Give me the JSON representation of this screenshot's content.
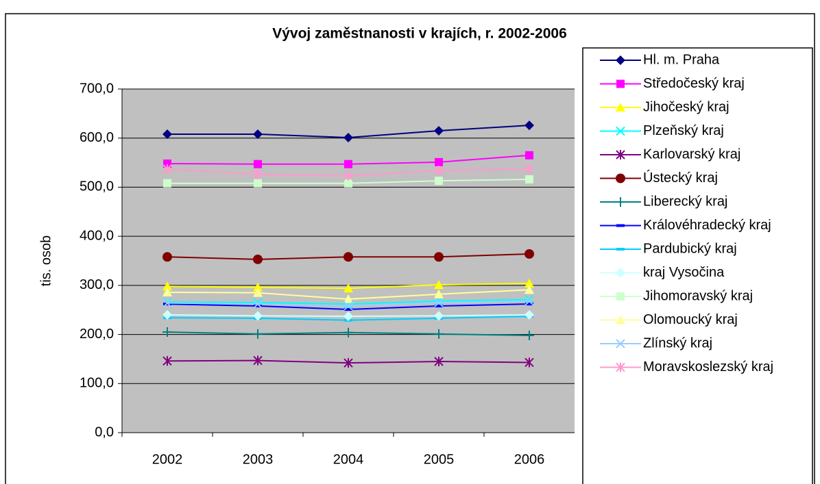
{
  "chart_data": {
    "type": "line",
    "title": "Vývoj zaměstnanosti v krajích, r. 2002-2006",
    "y_label": "tis. osob",
    "categories": [
      "2002",
      "2003",
      "2004",
      "2005",
      "2006"
    ],
    "ylim": [
      0,
      700
    ],
    "yticks": [
      {
        "value": 0,
        "label": "0,0"
      },
      {
        "value": 100,
        "label": "100,0"
      },
      {
        "value": 200,
        "label": "200,0"
      },
      {
        "value": 300,
        "label": "300,0"
      },
      {
        "value": 400,
        "label": "400,0"
      },
      {
        "value": 500,
        "label": "500,0"
      },
      {
        "value": 600,
        "label": "600,0"
      },
      {
        "value": 700,
        "label": "700,0"
      }
    ],
    "grid": true,
    "legend": "right",
    "series": [
      {
        "name": "Hl. m. Praha",
        "color": "#000080",
        "marker": "diamond",
        "values": [
          608,
          608,
          601,
          615,
          626
        ]
      },
      {
        "name": "Středočeský kraj",
        "color": "#FF00FF",
        "marker": "square",
        "values": [
          548,
          547,
          547,
          551,
          565
        ]
      },
      {
        "name": "Jihočeský kraj",
        "color": "#FFFF00",
        "marker": "triangle",
        "values": [
          298,
          296,
          294,
          301,
          304
        ]
      },
      {
        "name": "Plzeňský kraj",
        "color": "#00FFFF",
        "marker": "x",
        "values": [
          266,
          265,
          262,
          268,
          271
        ]
      },
      {
        "name": "Karlovarský kraj",
        "color": "#800080",
        "marker": "star",
        "values": [
          146,
          147,
          142,
          145,
          143
        ]
      },
      {
        "name": "Ústecký kraj",
        "color": "#800000",
        "marker": "circle",
        "values": [
          358,
          353,
          358,
          358,
          364
        ]
      },
      {
        "name": "Liberecký kraj",
        "color": "#008080",
        "marker": "plus",
        "values": [
          205,
          201,
          204,
          201,
          198
        ]
      },
      {
        "name": "Královéhradecký kraj",
        "color": "#0000FF",
        "marker": "dash",
        "values": [
          262,
          258,
          251,
          258,
          262
        ]
      },
      {
        "name": "Pardubický kraj",
        "color": "#00CCFF",
        "marker": "dash",
        "values": [
          234,
          233,
          229,
          233,
          237
        ]
      },
      {
        "name": "kraj Vysočina",
        "color": "#CCFFFF",
        "marker": "diamond",
        "values": [
          240,
          238,
          237,
          238,
          240
        ]
      },
      {
        "name": "Jihomoravský kraj",
        "color": "#CCFFCC",
        "marker": "square",
        "values": [
          508,
          508,
          508,
          513,
          516
        ]
      },
      {
        "name": "Olomoucký kraj",
        "color": "#FFFF99",
        "marker": "triangle",
        "values": [
          286,
          285,
          272,
          282,
          291
        ]
      },
      {
        "name": "Zlínský kraj",
        "color": "#99CCFF",
        "marker": "x",
        "values": [
          264,
          262,
          258,
          265,
          268
        ]
      },
      {
        "name": "Moravskoslezský kraj",
        "color": "#FF99CC",
        "marker": "star",
        "values": [
          537,
          526,
          523,
          534,
          537
        ]
      }
    ]
  }
}
